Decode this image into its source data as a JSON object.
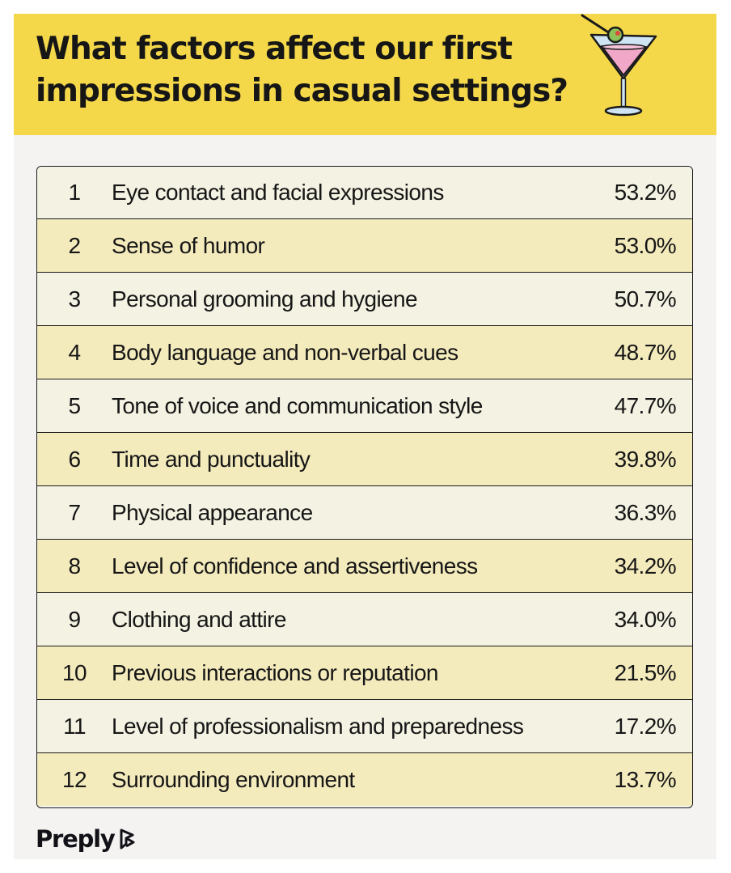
{
  "header": {
    "title": "What factors affect our first impressions in casual settings?",
    "background_color": "#f4d84a"
  },
  "illustration": {
    "icon": "martini-cocktail-icon"
  },
  "table": {
    "rows": [
      {
        "rank": "1",
        "factor": "Eye contact and facial expressions",
        "percent": "53.2%"
      },
      {
        "rank": "2",
        "factor": "Sense of humor",
        "percent": "53.0%"
      },
      {
        "rank": "3",
        "factor": "Personal grooming and hygiene",
        "percent": "50.7%"
      },
      {
        "rank": "4",
        "factor": "Body language and non-verbal cues",
        "percent": "48.7%"
      },
      {
        "rank": "5",
        "factor": "Tone of voice and communication style",
        "percent": "47.7%"
      },
      {
        "rank": "6",
        "factor": "Time and punctuality",
        "percent": "39.8%"
      },
      {
        "rank": "7",
        "factor": "Physical appearance",
        "percent": "36.3%"
      },
      {
        "rank": "8",
        "factor": "Level of confidence and assertiveness",
        "percent": "34.2%"
      },
      {
        "rank": "9",
        "factor": "Clothing and attire",
        "percent": "34.0%"
      },
      {
        "rank": "10",
        "factor": "Previous interactions or reputation",
        "percent": "21.5%"
      },
      {
        "rank": "11",
        "factor": "Level of professionalism and preparedness",
        "percent": "17.2%"
      },
      {
        "rank": "12",
        "factor": "Surrounding environment",
        "percent": "13.7%"
      }
    ],
    "odd_row_color": "#f4f2e2",
    "even_row_color": "#f4ebbd"
  },
  "footer": {
    "brand": "Preply",
    "brand_icon": "preply-logo-icon"
  }
}
